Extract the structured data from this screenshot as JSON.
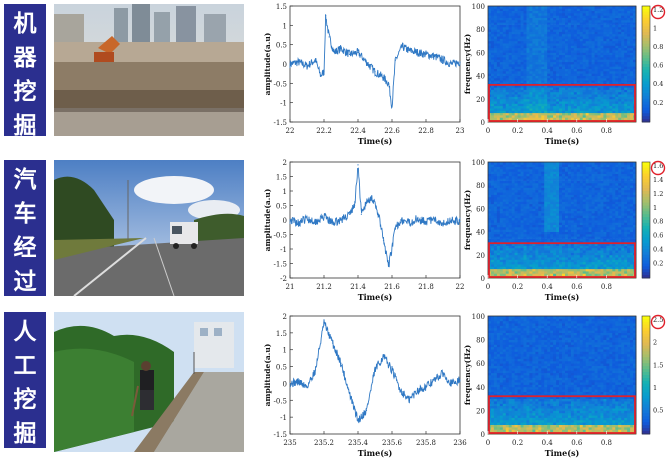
{
  "rows": [
    {
      "label_chars": [
        "机",
        "器",
        "挖",
        "掘"
      ],
      "colorbar_max_label": "1.2",
      "colorbar_ticks": [
        "1.2",
        "1",
        "0.8",
        "0.6",
        "0.4",
        "0.2"
      ],
      "colorbar_values": [
        1.2,
        1.0,
        0.8,
        0.6,
        0.4,
        0.2
      ]
    },
    {
      "label_chars": [
        "汽",
        "车",
        "经",
        "过"
      ],
      "colorbar_max_label": "1.6",
      "colorbar_ticks": [
        "1.6",
        "1.4",
        "1.2",
        "1",
        "0.8",
        "0.6",
        "0.4",
        "0.2"
      ],
      "colorbar_values": [
        1.6,
        1.4,
        1.2,
        1.0,
        0.8,
        0.6,
        0.4,
        0.2
      ]
    },
    {
      "label_chars": [
        "人",
        "工",
        "挖",
        "掘"
      ],
      "colorbar_max_label": "2.5",
      "colorbar_ticks": [
        "2.5",
        "2",
        "1.5",
        "1",
        "0.5"
      ],
      "colorbar_values": [
        2.5,
        2.0,
        1.5,
        1.0,
        0.5
      ]
    }
  ],
  "chart_data": [
    {
      "type": "line",
      "xlabel": "Time(s)",
      "ylabel": "amplitude(a.u)",
      "xlim": [
        22,
        23
      ],
      "ylim": [
        -1.5,
        1.5
      ],
      "xticks": [
        "22",
        "22.2",
        "22.4",
        "22.6",
        "22.8",
        "23"
      ],
      "yticks": [
        "1.5",
        "1",
        "0.5",
        "0",
        "-0.5",
        "-1",
        "-1.5"
      ],
      "x": [
        22.0,
        22.05,
        22.1,
        22.15,
        22.18,
        22.2,
        22.21,
        22.23,
        22.26,
        22.3,
        22.35,
        22.4,
        22.45,
        22.5,
        22.55,
        22.58,
        22.6,
        22.62,
        22.66,
        22.7,
        22.75,
        22.8,
        22.85,
        22.9,
        22.95,
        23.0
      ],
      "y": [
        0.0,
        0.05,
        -0.05,
        0.1,
        -0.3,
        -0.2,
        1.25,
        0.7,
        0.3,
        0.4,
        0.25,
        0.3,
        0.05,
        -0.2,
        -0.35,
        -0.5,
        -1.1,
        0.1,
        0.45,
        0.35,
        0.3,
        0.25,
        0.2,
        0.1,
        0.0,
        0.05
      ]
    },
    {
      "type": "heatmap",
      "xlabel": "Time(s)",
      "ylabel": "frequency(Hz)",
      "xlim": [
        0,
        1
      ],
      "ylim": [
        0,
        100
      ],
      "xticks": [
        "0",
        "0.2",
        "0.4",
        "0.6",
        "0.8"
      ],
      "yticks": [
        "100",
        "80",
        "60",
        "40",
        "20",
        "0"
      ],
      "highlight_freq": [
        0,
        32
      ]
    },
    {
      "type": "line",
      "xlabel": "Time(s)",
      "ylabel": "amplitude(a.u)",
      "xlim": [
        21,
        22
      ],
      "ylim": [
        -2,
        2
      ],
      "xticks": [
        "21",
        "21.2",
        "21.4",
        "21.6",
        "21.8",
        "22"
      ],
      "yticks": [
        "2",
        "1.5",
        "1",
        "0.5",
        "0",
        "-0.5",
        "-1",
        "-1.5",
        "-2"
      ],
      "x": [
        21.0,
        21.05,
        21.1,
        21.15,
        21.2,
        21.25,
        21.3,
        21.35,
        21.38,
        21.4,
        21.42,
        21.45,
        21.48,
        21.52,
        21.55,
        21.58,
        21.62,
        21.65,
        21.7,
        21.75,
        21.8,
        21.85,
        21.9,
        21.95,
        22.0
      ],
      "y": [
        0.0,
        -0.1,
        0.05,
        -0.05,
        0.1,
        -0.1,
        0.0,
        0.2,
        0.5,
        1.9,
        0.2,
        0.6,
        0.8,
        0.2,
        -0.7,
        -1.6,
        -0.3,
        0.0,
        -0.1,
        0.05,
        -0.05,
        0.0,
        -0.1,
        0.0,
        -0.05
      ]
    },
    {
      "type": "heatmap",
      "xlabel": "Time(s)",
      "ylabel": "frequency(Hz)",
      "xlim": [
        0,
        1
      ],
      "ylim": [
        0,
        100
      ],
      "xticks": [
        "0",
        "0.2",
        "0.4",
        "0.6",
        "0.8"
      ],
      "yticks": [
        "100",
        "80",
        "60",
        "40",
        "20",
        "0"
      ],
      "highlight_freq": [
        0,
        30
      ]
    },
    {
      "type": "line",
      "xlabel": "Time(s)",
      "ylabel": "amplitude(a.u)",
      "xlim": [
        235,
        236
      ],
      "ylim": [
        -1.5,
        2
      ],
      "xticks": [
        "235",
        "235.2",
        "235.4",
        "235.6",
        "235.8",
        "236"
      ],
      "yticks": [
        "2",
        "1.5",
        "1",
        "0.5",
        "0",
        "-0.5",
        "-1",
        "-1.5"
      ],
      "x": [
        235.0,
        235.05,
        235.1,
        235.15,
        235.2,
        235.25,
        235.3,
        235.35,
        235.4,
        235.45,
        235.5,
        235.55,
        235.6,
        235.65,
        235.7,
        235.75,
        235.8,
        235.85,
        235.9,
        235.95,
        236.0
      ],
      "y": [
        0.0,
        0.05,
        -0.1,
        0.4,
        1.8,
        1.2,
        0.6,
        -0.3,
        -1.1,
        -0.8,
        0.4,
        0.8,
        0.4,
        -0.2,
        -0.5,
        -0.2,
        -0.1,
        0.1,
        0.3,
        0.0,
        0.1
      ]
    },
    {
      "type": "heatmap",
      "xlabel": "Time(s)",
      "ylabel": "frequency(Hz)",
      "xlim": [
        0,
        1
      ],
      "ylim": [
        0,
        100
      ],
      "xticks": [
        "0",
        "0.2",
        "0.4",
        "0.6",
        "0.8"
      ],
      "yticks": [
        "100",
        "80",
        "60",
        "40",
        "20",
        "0"
      ],
      "highlight_freq": [
        0,
        32
      ]
    }
  ]
}
